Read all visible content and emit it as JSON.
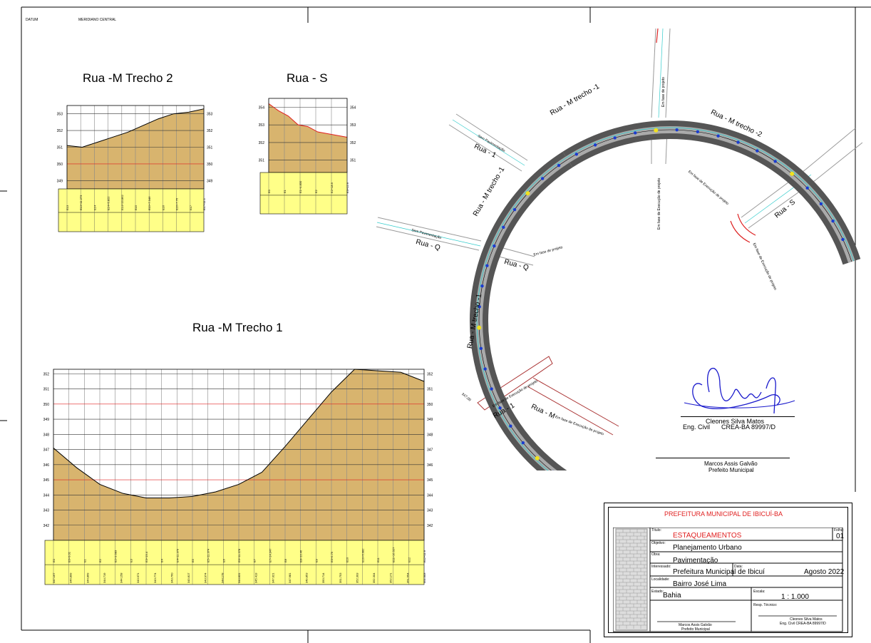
{
  "header": {
    "datum": "DATUM",
    "meridiano": "MERIDIANO CENTRAL"
  },
  "profiles": {
    "m2": {
      "title": "Rua -M Trecho 2",
      "y_ticks": [
        "353",
        "352",
        "351",
        "350",
        "349"
      ],
      "axis_min": 348.5,
      "axis_max": 353.5,
      "terrain": [
        351.1,
        351.0,
        351.3,
        351.6,
        351.9,
        352.3,
        352.7,
        353.0,
        353.1,
        353.3
      ],
      "stations": [
        "E13",
        "E13+11.273",
        "E14",
        "E14+6.822",
        "E14+19.862",
        "E15",
        "E15+7.346",
        "E16",
        "E16+7.76",
        "E17",
        "E17+11.1"
      ]
    },
    "s": {
      "title": "Rua - S",
      "y_ticks": [
        "354",
        "353",
        "352",
        "351"
      ],
      "axis_min": 350.3,
      "axis_max": 354.5,
      "terrain": [
        354.2,
        353.8,
        353.5,
        353.0,
        352.9,
        352.6,
        352.5,
        352.4,
        352.3
      ],
      "stations": [
        "E0",
        "E1",
        "E1+4.830",
        "E2",
        "E2+18.9",
        "E3+12.9"
      ]
    },
    "m1": {
      "title": "Rua -M Trecho 1",
      "y_ticks": [
        "352",
        "351",
        "350",
        "349",
        "348",
        "347",
        "346",
        "345",
        "344",
        "343",
        "342"
      ],
      "axis_min": 341.0,
      "axis_max": 352.3,
      "terrain": [
        347.1,
        345.8,
        344.7,
        344.1,
        343.8,
        343.8,
        343.9,
        344.2,
        344.7,
        345.5,
        347.2,
        349.0,
        350.8,
        352.3,
        352.2,
        352.1,
        351.5
      ],
      "stations": [
        "E0",
        "E0+9.01",
        "E1",
        "E2",
        "E2+3.683",
        "E3",
        "E3+19.4",
        "E4",
        "E4+11.379",
        "E5",
        "E5+11.374",
        "E6",
        "E6+11.378",
        "E7",
        "E7+14.347",
        "E8",
        "E8+10.46",
        "E9",
        "E9+6.79",
        "E10",
        "E10+6.982",
        "E11",
        "E11+16.527",
        "E12",
        "E12+11.9"
      ],
      "levels": [
        "347.167",
        "346.899",
        "344.869",
        "344.719",
        "344.158",
        "343.971",
        "343.774",
        "343.760",
        "343.817",
        "343.974",
        "344.178",
        "344.831",
        "345.413",
        "347.021",
        "347.981",
        "349.853",
        "350.714",
        "351.753",
        "352.303",
        "352.304",
        "352.171",
        "351.554",
        "351.303"
      ]
    }
  },
  "plan": {
    "streets": {
      "rua1_top": "Rua - 1",
      "rua1_bottom": "Rua - 1",
      "ruaQ_left": "Rua - Q",
      "ruaQ_right": "Rua - Q",
      "ruaS": "Rua - S",
      "ruaM_bottom": "Rua - M",
      "m_trecho1_top": "Rua - M trecho -1",
      "m_trecho1_left": "Rua - M trecho -1",
      "m_trecho1_low": "Rua - M trecho -1",
      "m_trecho2": "Rua - M trecho -2"
    },
    "notes": {
      "sem_pav_1": "Sem Pavimentação",
      "sem_pav_2": "Sem Pavimentação",
      "em_fase_projeto_q": "Em fase de projeto",
      "em_fase_projeto_top": "Em fase de projeto",
      "em_fase_exec_vert": "Em fase de Execução de projeto",
      "em_fase_exec_diag": "Em fase de Execução de projeto",
      "em_fase_exec_right": "Em fase de Execução de projeto",
      "em_fase_exec_bottom": "Em fase de Execução de projeto",
      "em_fase_exec_m": "Em fase de Execução de projeto",
      "level": "347,00"
    }
  },
  "signatures": {
    "engineer_name": "Cleones Silva Matos",
    "engineer_role": "Eng. Civil",
    "engineer_crea": "CREA-BA 89997/D",
    "mayor_name": "Marcos  Assis Galvão",
    "mayor_role": "Prefeito Municipal"
  },
  "title_block": {
    "header": "PREFEITURA MUNICIPAL DE IBICUÍ-BA",
    "titulo_label": "Título:",
    "titulo": "ESTAQUEAMENTOS",
    "folha_label": "Folha:",
    "folha": "01",
    "objetivo_label": "Objetivo:",
    "objetivo": "Planejamento Urbano",
    "obra_label": "Obra:",
    "obra": "Pavimentação",
    "interessado_label": "Interessado:",
    "interessado": "Prefeitura Municipal de Ibicuí",
    "data_label": "Data:",
    "data": "Agosto 2022",
    "localidade_label": "Localidade:",
    "localidade": "Bairro José Lima",
    "estado_label": "Estado:",
    "estado": "Bahia",
    "escala_label": "Escala:",
    "escala": "1 : 1.000",
    "resp_label": "Resp. Técnico:",
    "sig_left_name": "Marcos  Assis Galvão",
    "sig_left_role": "Prefeito Municipal",
    "sig_right_name": "Cleones Silva Matos",
    "sig_right_role": "Eng. Civil     CREA-BA 89997/D"
  },
  "colors": {
    "terrain": "#d8b46e",
    "band": "#ffff88",
    "accent": "#e02020",
    "road": "#7a7a7a"
  }
}
